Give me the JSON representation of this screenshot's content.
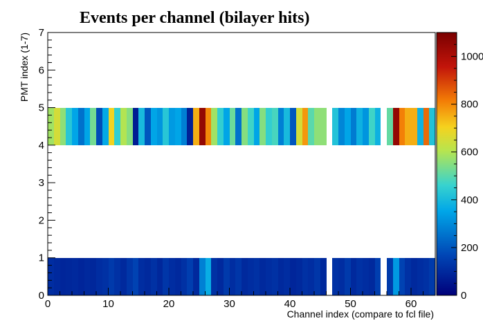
{
  "chart_data": {
    "type": "heatmap",
    "title": "Events per channel (bilayer hits)",
    "xlabel": "Channel index (compare to fcl file)",
    "ylabel": "PMT index (1-7)",
    "xlim": [
      0,
      64
    ],
    "ylim": [
      0,
      7
    ],
    "x_ticks": [
      0,
      10,
      20,
      30,
      40,
      50,
      60
    ],
    "y_ticks": [
      0,
      1,
      2,
      3,
      4,
      5,
      6,
      7
    ],
    "colorbar": {
      "range": [
        0,
        1100
      ],
      "ticks": [
        0,
        200,
        400,
        600,
        800,
        1000
      ],
      "palette": "rainbow (dark blue to dark red)"
    },
    "rows": [
      {
        "y_range": [
          0,
          1
        ],
        "values": [
          110,
          100,
          90,
          95,
          100,
          90,
          100,
          95,
          110,
          120,
          140,
          120,
          100,
          130,
          160,
          110,
          100,
          120,
          95,
          130,
          110,
          100,
          120,
          150,
          100,
          280,
          370,
          120,
          100,
          140,
          110,
          130,
          100,
          110,
          120,
          100,
          110,
          120,
          100,
          110,
          90,
          100,
          120,
          110,
          130,
          100,
          0,
          120,
          110,
          140,
          100,
          120,
          110,
          100,
          150,
          0,
          140,
          330,
          160,
          120,
          100,
          110,
          120,
          140
        ]
      },
      {
        "y_range": [
          4,
          5
        ],
        "values": [
          580,
          650,
          560,
          430,
          350,
          250,
          350,
          530,
          180,
          360,
          700,
          450,
          600,
          550,
          70,
          400,
          200,
          350,
          320,
          430,
          330,
          350,
          280,
          80,
          750,
          1050,
          800,
          580,
          450,
          350,
          520,
          250,
          550,
          470,
          350,
          550,
          450,
          480,
          280,
          400,
          200,
          650,
          780,
          500,
          560,
          560,
          0,
          420,
          290,
          350,
          270,
          380,
          320,
          470,
          380,
          0,
          510,
          1050,
          810,
          750,
          750,
          380,
          840,
          420
        ]
      }
    ]
  }
}
